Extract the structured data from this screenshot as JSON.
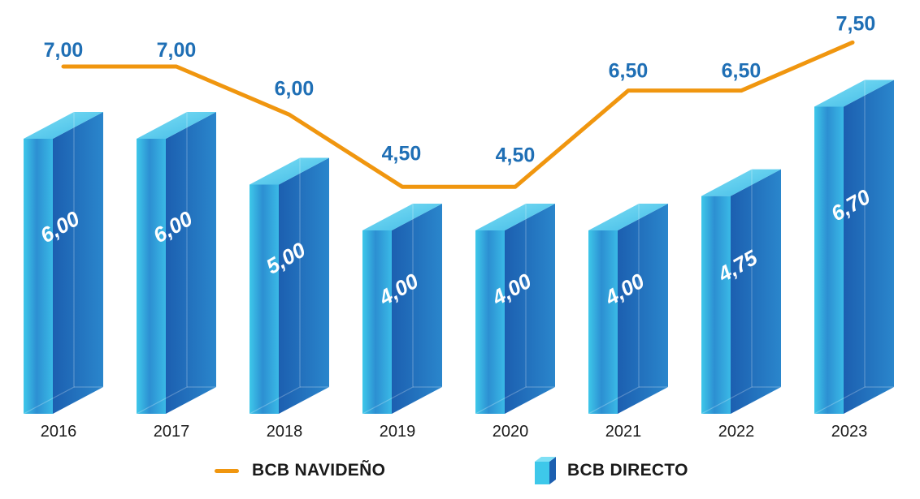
{
  "chart_data": {
    "type": "bar",
    "categories": [
      "2016",
      "2017",
      "2018",
      "2019",
      "2020",
      "2021",
      "2022",
      "2023"
    ],
    "series": [
      {
        "name": "BCB DIRECTO",
        "type": "bar",
        "values": [
          6.0,
          6.0,
          5.0,
          4.0,
          4.0,
          4.0,
          4.75,
          6.7
        ],
        "labels": [
          "6,00",
          "6,00",
          "5,00",
          "4,00",
          "4,00",
          "4,00",
          "4,75",
          "6,70"
        ]
      },
      {
        "name": "BCB NAVIDEÑO",
        "type": "line",
        "values": [
          7.0,
          7.0,
          6.0,
          4.5,
          4.5,
          6.5,
          6.5,
          7.5
        ],
        "labels": [
          "7,00",
          "7,00",
          "6,00",
          "4,50",
          "4,50",
          "6,50",
          "6,50",
          "7,50"
        ]
      }
    ],
    "title": "",
    "xlabel": "",
    "ylabel": "",
    "grid": false,
    "legend": "bottom"
  },
  "legend": {
    "line_label": "BCB NAVIDEÑO",
    "bar_label": "BCB DIRECTO"
  },
  "colors": {
    "line": "#f0960f",
    "line_label": "#1f6fb5",
    "bar_light": "#3ec8ea",
    "bar_dark": "#1c5fb0",
    "bar_top": "#5fd5f0",
    "bar_label": "#ffffff",
    "axis_text": "#1a1a1a"
  }
}
